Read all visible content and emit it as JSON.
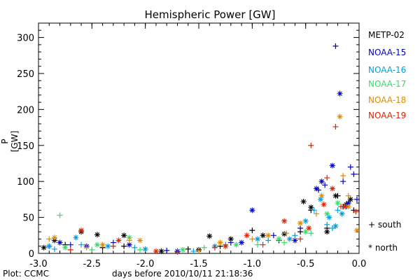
{
  "chart_data": {
    "type": "scatter",
    "title": "Hemispheric Power [GW]",
    "xlabel": "days before 2010/10/11 21:18:36",
    "ylabel": "P [GW]",
    "xlim": [
      -3.0,
      0.0
    ],
    "ylim": [
      0,
      320
    ],
    "x_ticks": [
      "-3.0",
      "-2.5",
      "-2.0",
      "-1.5",
      "-1.0",
      "-0.5",
      "0.0"
    ],
    "y_ticks": [
      "0",
      "50",
      "100",
      "150",
      "200",
      "250",
      "300"
    ],
    "grid": false,
    "legend_position": "right",
    "markers": {
      "south": "+ south",
      "north": "* north"
    },
    "credit": "Plot: CCMC",
    "series": [
      {
        "name": "METP-02",
        "color": "#000000",
        "south": [
          [
            -2.75,
            12
          ],
          [
            -2.4,
            8
          ],
          [
            -2.2,
            10
          ],
          [
            -1.6,
            6
          ],
          [
            -1.3,
            10
          ],
          [
            -1.0,
            32
          ],
          [
            -0.75,
            18
          ],
          [
            -0.55,
            30
          ],
          [
            -0.45,
            60
          ],
          [
            -0.3,
            35
          ],
          [
            -0.2,
            80
          ],
          [
            -0.15,
            65
          ],
          [
            -0.05,
            60
          ]
        ],
        "north": [
          [
            -2.95,
            8
          ],
          [
            -2.85,
            18
          ],
          [
            -2.6,
            30
          ],
          [
            -2.45,
            26
          ],
          [
            -2.2,
            25
          ],
          [
            -1.85,
            3
          ],
          [
            -1.5,
            5
          ],
          [
            -1.4,
            24
          ],
          [
            -1.2,
            20
          ],
          [
            -0.9,
            25
          ],
          [
            -0.7,
            27
          ],
          [
            -0.52,
            72
          ],
          [
            -0.45,
            64
          ],
          [
            -0.3,
            30
          ],
          [
            -0.22,
            80
          ],
          [
            -0.12,
            68
          ],
          [
            -0.08,
            75
          ]
        ]
      },
      {
        "name": "NOAA-15",
        "color": "#0000cc",
        "south": [
          [
            -2.9,
            10
          ],
          [
            -2.7,
            12
          ],
          [
            -2.3,
            15
          ],
          [
            -1.8,
            4
          ],
          [
            -1.2,
            15
          ],
          [
            -0.8,
            25
          ],
          [
            -0.55,
            35
          ],
          [
            -0.38,
            88
          ],
          [
            -0.32,
            95
          ],
          [
            -0.22,
            288
          ],
          [
            -0.15,
            100
          ],
          [
            -0.08,
            120
          ],
          [
            -0.05,
            110
          ],
          [
            -0.02,
            75
          ]
        ],
        "north": [
          [
            -2.8,
            15
          ],
          [
            -2.55,
            10
          ],
          [
            -2.15,
            12
          ],
          [
            -1.7,
            3
          ],
          [
            -1.1,
            15
          ],
          [
            -1.0,
            60
          ],
          [
            -0.6,
            18
          ],
          [
            -0.4,
            90
          ],
          [
            -0.35,
            100
          ],
          [
            -0.25,
            122
          ],
          [
            -0.18,
            222
          ],
          [
            -0.1,
            70
          ]
        ]
      },
      {
        "name": "NOAA-16",
        "color": "#00a0e0",
        "south": [
          [
            -2.85,
            6
          ],
          [
            -2.6,
            12
          ],
          [
            -2.1,
            8
          ],
          [
            -1.55,
            3
          ],
          [
            -1.25,
            12
          ],
          [
            -0.85,
            18
          ],
          [
            -0.6,
            25
          ],
          [
            -0.42,
            60
          ],
          [
            -0.3,
            40
          ],
          [
            -0.25,
            35
          ],
          [
            -0.2,
            60
          ],
          [
            -0.12,
            65
          ]
        ],
        "north": [
          [
            -2.9,
            10
          ],
          [
            -2.65,
            22
          ],
          [
            -2.35,
            10
          ],
          [
            -2.0,
            6
          ],
          [
            -1.35,
            10
          ],
          [
            -0.95,
            20
          ],
          [
            -0.65,
            20
          ],
          [
            -0.5,
            45
          ],
          [
            -0.36,
            75
          ],
          [
            -0.28,
            50
          ],
          [
            -0.22,
            38
          ],
          [
            -0.16,
            55
          ]
        ]
      },
      {
        "name": "NOAA-17",
        "color": "#33dd66",
        "south": [
          [
            -2.8,
            53
          ],
          [
            -2.5,
            5
          ],
          [
            -2.05,
            5
          ],
          [
            -1.45,
            8
          ],
          [
            -0.95,
            12
          ],
          [
            -0.7,
            15
          ],
          [
            -0.45,
            28
          ]
        ],
        "north": [
          [
            -2.75,
            8
          ],
          [
            -2.45,
            12
          ],
          [
            -2.15,
            22
          ],
          [
            -1.65,
            5
          ],
          [
            -1.15,
            12
          ],
          [
            -0.75,
            20
          ],
          [
            -0.5,
            30
          ],
          [
            -0.3,
            55
          ],
          [
            -0.2,
            70
          ]
        ]
      },
      {
        "name": "NOAA-18",
        "color": "#e08a00",
        "south": [
          [
            -2.9,
            20
          ],
          [
            -2.55,
            8
          ],
          [
            -2.15,
            18
          ],
          [
            -1.5,
            4
          ],
          [
            -1.0,
            20
          ],
          [
            -0.68,
            28
          ],
          [
            -0.4,
            55
          ],
          [
            -0.15,
            108
          ],
          [
            -0.1,
            80
          ]
        ],
        "north": [
          [
            -2.85,
            22
          ],
          [
            -2.4,
            12
          ],
          [
            -2.05,
            18
          ],
          [
            -1.3,
            15
          ],
          [
            -0.85,
            25
          ],
          [
            -0.55,
            42
          ],
          [
            -0.35,
            80
          ],
          [
            -0.18,
            190
          ],
          [
            -0.1,
            65
          ],
          [
            -0.02,
            32
          ]
        ]
      },
      {
        "name": "NOAA-19",
        "color": "#dd2200",
        "south": [
          [
            -2.7,
            5
          ],
          [
            -2.3,
            10
          ],
          [
            -1.7,
            2
          ],
          [
            -1.35,
            8
          ],
          [
            -0.9,
            12
          ],
          [
            -0.55,
            20
          ],
          [
            -0.45,
            150
          ],
          [
            -0.3,
            105
          ],
          [
            -0.22,
            176
          ],
          [
            -0.17,
            65
          ],
          [
            -0.03,
            58
          ]
        ],
        "north": [
          [
            -2.6,
            32
          ],
          [
            -2.25,
            18
          ],
          [
            -1.9,
            3
          ],
          [
            -1.25,
            10
          ],
          [
            -1.05,
            25
          ],
          [
            -0.7,
            45
          ],
          [
            -0.47,
            35
          ],
          [
            -0.33,
            68
          ],
          [
            -0.25,
            90
          ],
          [
            -0.13,
            65
          ]
        ]
      }
    ]
  }
}
